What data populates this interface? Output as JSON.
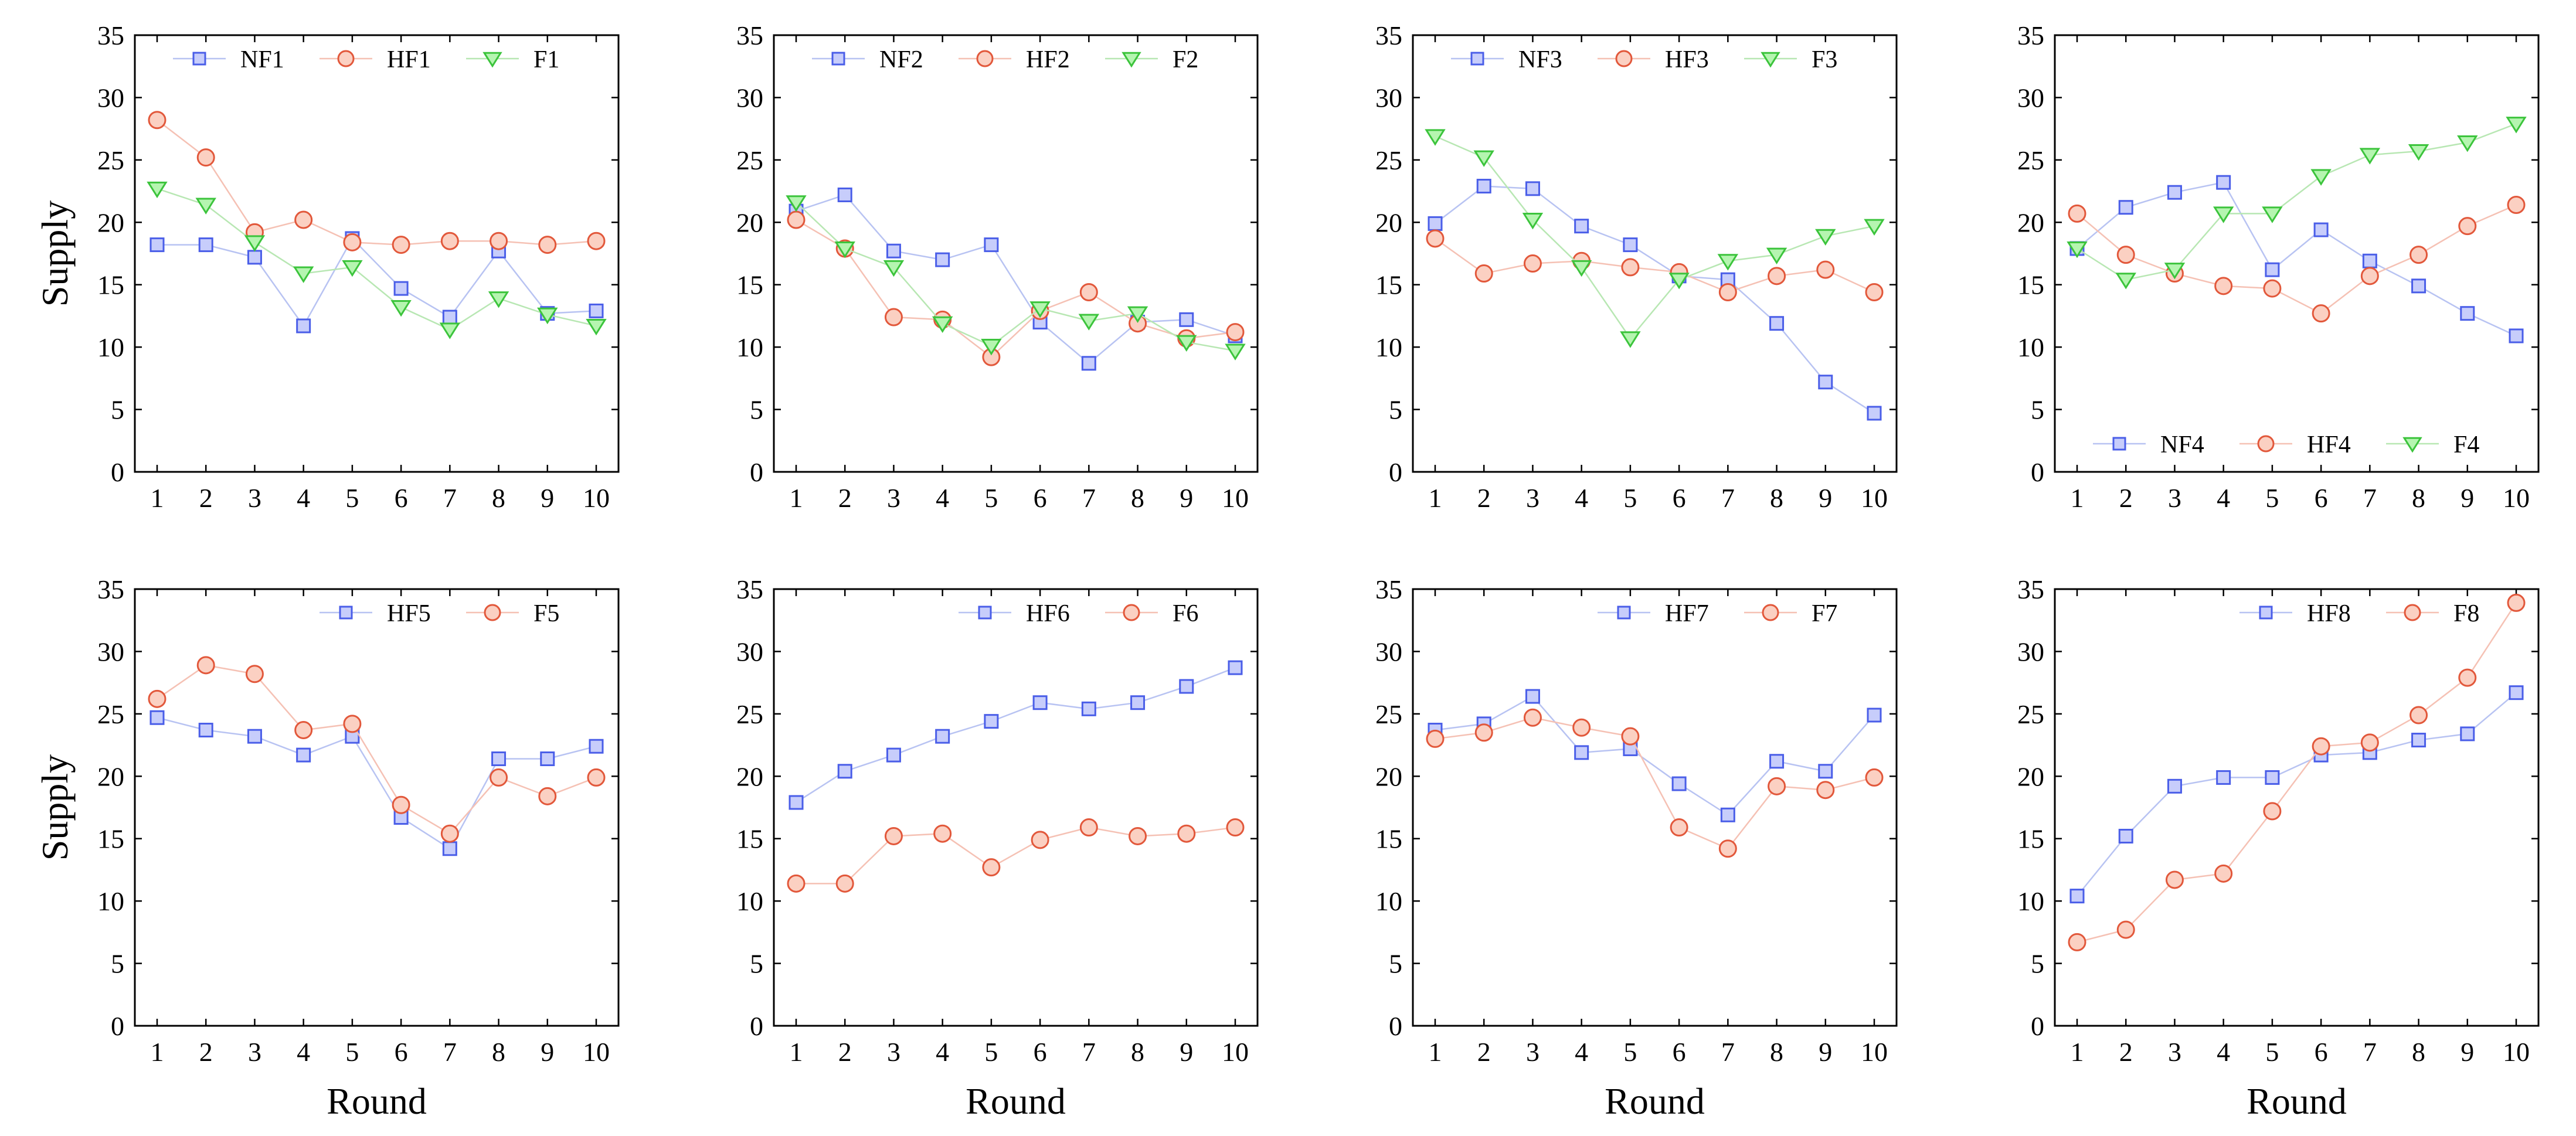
{
  "figure": {
    "marker_styles": {
      "square": {
        "fill": "#c7cdfb",
        "stroke": "#4a5ee8"
      },
      "circle": {
        "fill": "#fbd0c2",
        "stroke": "#e2583b"
      },
      "triangle": {
        "fill": "#b5f5b0",
        "stroke": "#3cc43c"
      }
    },
    "line_colors": {
      "square": "#b8c3f2",
      "circle": "#f5c1b4",
      "triangle": "#b8e7b3"
    }
  },
  "chart_data": [
    {
      "type": "line",
      "ylabel": "Supply",
      "xlabel": "",
      "x": [
        1,
        2,
        3,
        4,
        5,
        6,
        7,
        8,
        9,
        10
      ],
      "ylim": [
        0,
        35
      ],
      "yticks": [
        0,
        5,
        10,
        15,
        20,
        25,
        30,
        35
      ],
      "legend_position": "top-right",
      "series": [
        {
          "name": "NF1",
          "marker": "square",
          "values": [
            18.2,
            18.2,
            17.2,
            11.7,
            18.7,
            14.7,
            12.4,
            17.7,
            12.7,
            12.9
          ]
        },
        {
          "name": "HF1",
          "marker": "circle",
          "values": [
            28.2,
            25.2,
            19.2,
            20.2,
            18.4,
            18.2,
            18.5,
            18.5,
            18.2,
            18.5
          ]
        },
        {
          "name": "F1",
          "marker": "triangle",
          "values": [
            22.7,
            21.4,
            18.4,
            15.9,
            16.4,
            13.2,
            11.4,
            13.9,
            12.6,
            11.7
          ]
        }
      ]
    },
    {
      "type": "line",
      "ylabel": "",
      "xlabel": "",
      "x": [
        1,
        2,
        3,
        4,
        5,
        6,
        7,
        8,
        9,
        10
      ],
      "ylim": [
        0,
        35
      ],
      "yticks": [
        0,
        5,
        10,
        15,
        20,
        25,
        30,
        35
      ],
      "legend_position": "top-right",
      "series": [
        {
          "name": "NF2",
          "marker": "square",
          "values": [
            20.9,
            22.2,
            17.7,
            17.0,
            18.2,
            12.0,
            8.7,
            12.0,
            12.2,
            10.9
          ]
        },
        {
          "name": "HF2",
          "marker": "circle",
          "values": [
            20.2,
            17.9,
            12.4,
            12.2,
            9.2,
            12.9,
            14.4,
            11.9,
            10.7,
            11.2
          ]
        },
        {
          "name": "F2",
          "marker": "triangle",
          "values": [
            21.6,
            17.9,
            16.4,
            11.9,
            10.1,
            13.1,
            12.1,
            12.7,
            10.4,
            9.7
          ]
        }
      ]
    },
    {
      "type": "line",
      "ylabel": "",
      "xlabel": "",
      "x": [
        1,
        2,
        3,
        4,
        5,
        6,
        7,
        8,
        9,
        10
      ],
      "ylim": [
        0,
        35
      ],
      "yticks": [
        0,
        5,
        10,
        15,
        20,
        25,
        30,
        35
      ],
      "legend_position": "top-right",
      "series": [
        {
          "name": "NF3",
          "marker": "square",
          "values": [
            19.9,
            22.9,
            22.7,
            19.7,
            18.2,
            15.7,
            15.4,
            11.9,
            7.2,
            4.7
          ]
        },
        {
          "name": "HF3",
          "marker": "circle",
          "values": [
            18.7,
            15.9,
            16.7,
            16.9,
            16.4,
            16.0,
            14.4,
            15.7,
            16.2,
            14.4
          ]
        },
        {
          "name": "F3",
          "marker": "triangle",
          "values": [
            26.9,
            25.2,
            20.2,
            16.4,
            10.7,
            15.4,
            16.9,
            17.4,
            18.9,
            19.7
          ]
        }
      ]
    },
    {
      "type": "line",
      "ylabel": "",
      "xlabel": "",
      "x": [
        1,
        2,
        3,
        4,
        5,
        6,
        7,
        8,
        9,
        10
      ],
      "ylim": [
        0,
        35
      ],
      "yticks": [
        0,
        5,
        10,
        15,
        20,
        25,
        30,
        35
      ],
      "legend_position": "bottom-right",
      "series": [
        {
          "name": "NF4",
          "marker": "square",
          "values": [
            17.9,
            21.2,
            22.4,
            23.2,
            16.2,
            19.4,
            16.9,
            14.9,
            12.7,
            10.9
          ]
        },
        {
          "name": "HF4",
          "marker": "circle",
          "values": [
            20.7,
            17.4,
            15.9,
            14.9,
            14.7,
            12.7,
            15.7,
            17.4,
            19.7,
            21.4
          ]
        },
        {
          "name": "F4",
          "marker": "triangle",
          "values": [
            17.9,
            15.4,
            16.2,
            20.7,
            20.7,
            23.7,
            25.4,
            25.7,
            26.4,
            27.9
          ]
        }
      ]
    },
    {
      "type": "line",
      "ylabel": "Supply",
      "xlabel": "Round",
      "x": [
        1,
        2,
        3,
        4,
        5,
        6,
        7,
        8,
        9,
        10
      ],
      "ylim": [
        0,
        35
      ],
      "yticks": [
        0,
        5,
        10,
        15,
        20,
        25,
        30,
        35
      ],
      "legend_position": "top-right",
      "series": [
        {
          "name": "HF5",
          "marker": "square",
          "values": [
            24.7,
            23.7,
            23.2,
            21.7,
            23.2,
            16.7,
            14.2,
            21.4,
            21.4,
            22.4
          ]
        },
        {
          "name": "F5",
          "marker": "circle",
          "values": [
            26.2,
            28.9,
            28.2,
            23.7,
            24.2,
            17.7,
            15.4,
            19.9,
            18.4,
            19.9
          ]
        }
      ]
    },
    {
      "type": "line",
      "ylabel": "",
      "xlabel": "Round",
      "x": [
        1,
        2,
        3,
        4,
        5,
        6,
        7,
        8,
        9,
        10
      ],
      "ylim": [
        0,
        35
      ],
      "yticks": [
        0,
        5,
        10,
        15,
        20,
        25,
        30,
        35
      ],
      "legend_position": "top-right",
      "series": [
        {
          "name": "HF6",
          "marker": "square",
          "values": [
            17.9,
            20.4,
            21.7,
            23.2,
            24.4,
            25.9,
            25.4,
            25.9,
            27.2,
            28.7
          ]
        },
        {
          "name": "F6",
          "marker": "circle",
          "values": [
            11.4,
            11.4,
            15.2,
            15.4,
            12.7,
            14.9,
            15.9,
            15.2,
            15.4,
            15.9
          ]
        }
      ]
    },
    {
      "type": "line",
      "ylabel": "",
      "xlabel": "Round",
      "x": [
        1,
        2,
        3,
        4,
        5,
        6,
        7,
        8,
        9,
        10
      ],
      "ylim": [
        0,
        35
      ],
      "yticks": [
        0,
        5,
        10,
        15,
        20,
        25,
        30,
        35
      ],
      "legend_position": "top-right",
      "series": [
        {
          "name": "HF7",
          "marker": "square",
          "values": [
            23.7,
            24.2,
            26.4,
            21.9,
            22.2,
            19.4,
            16.9,
            21.2,
            20.4,
            24.9
          ]
        },
        {
          "name": "F7",
          "marker": "circle",
          "values": [
            23.0,
            23.5,
            24.7,
            23.9,
            23.2,
            15.9,
            14.2,
            19.2,
            18.9,
            19.9
          ]
        }
      ]
    },
    {
      "type": "line",
      "ylabel": "",
      "xlabel": "Round",
      "x": [
        1,
        2,
        3,
        4,
        5,
        6,
        7,
        8,
        9,
        10
      ],
      "ylim": [
        0,
        35
      ],
      "yticks": [
        0,
        5,
        10,
        15,
        20,
        25,
        30,
        35
      ],
      "legend_position": "top-right",
      "series": [
        {
          "name": "HF8",
          "marker": "square",
          "values": [
            10.4,
            15.2,
            19.2,
            19.9,
            19.9,
            21.7,
            21.9,
            22.9,
            23.4,
            26.7
          ]
        },
        {
          "name": "F8",
          "marker": "circle",
          "values": [
            6.7,
            7.7,
            11.7,
            12.2,
            17.2,
            22.4,
            22.7,
            24.9,
            27.9,
            33.9
          ]
        }
      ]
    }
  ]
}
